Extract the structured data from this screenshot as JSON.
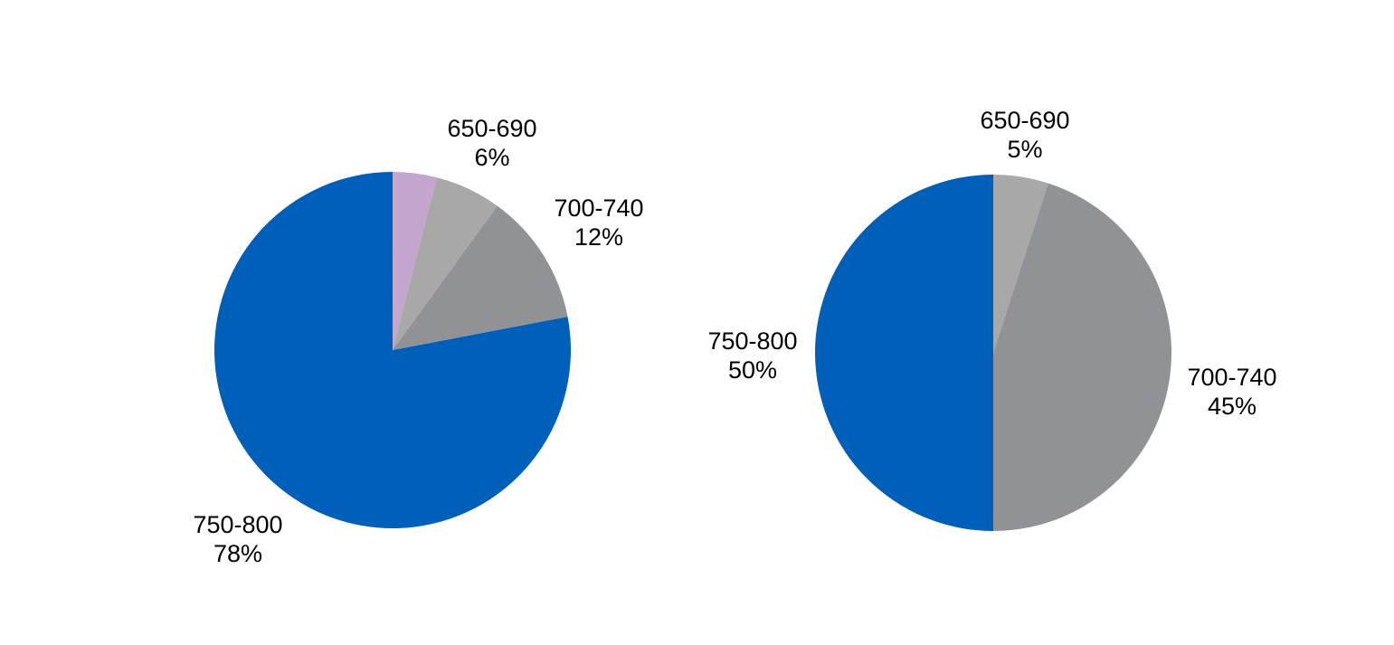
{
  "figure": {
    "background": "#FFFFFF",
    "text_color": "#000000",
    "accent_blue": "#005FB8",
    "accent_purple": "#C4A5CE",
    "accent_light_gray": "#A8A8A8",
    "accent_dark_gray": "#909296"
  },
  "chart_data": [
    {
      "type": "pie",
      "id": "left-pie",
      "start_angle_deg": 0,
      "direction": "clockwise",
      "legend_position": "outside-labels",
      "slices": [
        {
          "label": "",
          "value": 4,
          "display": "",
          "color": "#C4A5CE"
        },
        {
          "label": "650-690",
          "value": 6,
          "display": "6%",
          "color": "#A8A8A8"
        },
        {
          "label": "700-740",
          "value": 12,
          "display": "12%",
          "color": "#909296"
        },
        {
          "label": "750-800",
          "value": 78,
          "display": "78%",
          "color": "#005FB8"
        }
      ]
    },
    {
      "type": "pie",
      "id": "right-pie",
      "start_angle_deg": 0,
      "direction": "clockwise",
      "legend_position": "outside-labels",
      "slices": [
        {
          "label": "650-690",
          "value": 5,
          "display": "5%",
          "color": "#A8A8A8"
        },
        {
          "label": "700-740",
          "value": 45,
          "display": "45%",
          "color": "#909296"
        },
        {
          "label": "750-800",
          "value": 50,
          "display": "50%",
          "color": "#005FB8"
        }
      ]
    }
  ]
}
